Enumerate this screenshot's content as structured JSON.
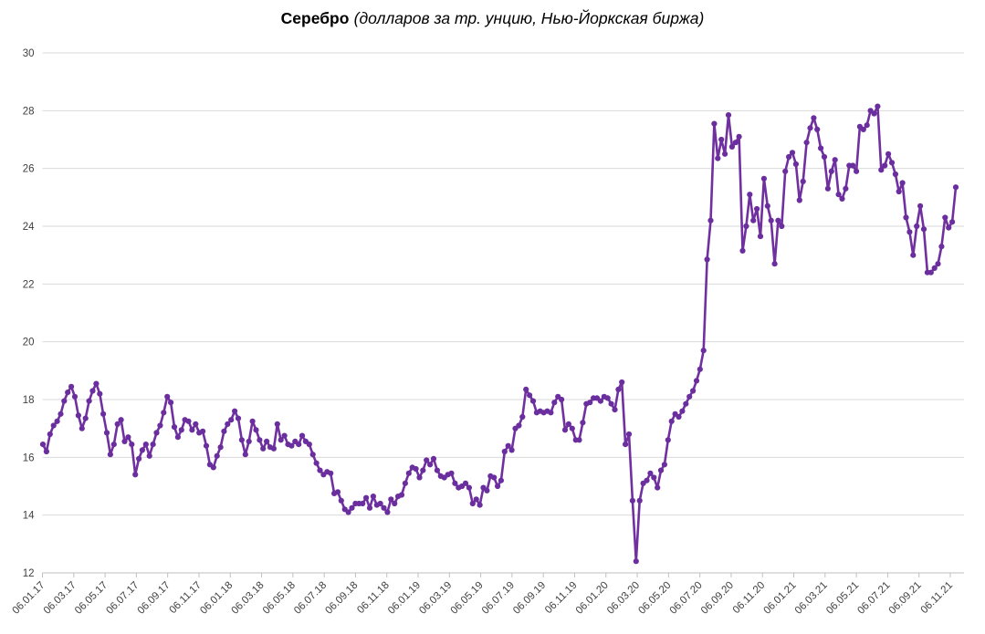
{
  "title": {
    "main": "Серебро",
    "subtitle": "(долларов за тр. унцию, Нью-Йоркская биржа)"
  },
  "colors": {
    "line": "#7030A0",
    "marker": "#6B2E9E",
    "grid": "#D9D9D9",
    "axis": "#BFBFBF",
    "tick_text": "#404040",
    "background": "#FFFFFF"
  },
  "chart_data": {
    "type": "line",
    "title": "Серебро (долларов за тр. унцию, Нью-Йоркская биржа)",
    "series_name": "Серебро, долларов за тройскую унцию",
    "frequency": "weekly",
    "x_start": "06.01.2017",
    "x_end": "12.11.2021",
    "xlabel": "",
    "ylabel": "",
    "ylim": [
      12,
      30
    ],
    "y_ticks": [
      12,
      14,
      16,
      18,
      20,
      22,
      24,
      26,
      28,
      30
    ],
    "grid": "horizontal",
    "legend": "none",
    "marker": "circle",
    "x_tick_labels": [
      "06.01.17",
      "06.03.17",
      "06.05.17",
      "06.07.17",
      "06.09.17",
      "06.11.17",
      "06.01.18",
      "06.03.18",
      "06.05.18",
      "06.07.18",
      "06.09.18",
      "06.11.18",
      "06.01.19",
      "06.03.19",
      "06.05.19",
      "06.07.19",
      "06.09.19",
      "06.11.19",
      "06.01.20",
      "06.03.20",
      "06.05.20",
      "06.07.20",
      "06.09.20",
      "06.11.20",
      "06.01.21",
      "06.03.21",
      "06.05.21",
      "06.07.21",
      "06.09.21",
      "06.11.21"
    ],
    "values": [
      16.45,
      16.2,
      16.8,
      17.1,
      17.25,
      17.5,
      17.95,
      18.25,
      18.45,
      18.1,
      17.45,
      17.0,
      17.35,
      17.95,
      18.3,
      18.55,
      18.2,
      17.5,
      16.85,
      16.1,
      16.45,
      17.15,
      17.3,
      16.55,
      16.7,
      16.45,
      15.4,
      15.95,
      16.25,
      16.45,
      16.05,
      16.45,
      16.85,
      17.1,
      17.55,
      18.1,
      17.9,
      17.05,
      16.7,
      16.95,
      17.3,
      17.25,
      16.95,
      17.15,
      16.85,
      16.9,
      16.4,
      15.75,
      15.65,
      16.05,
      16.35,
      16.9,
      17.15,
      17.3,
      17.6,
      17.35,
      16.6,
      16.1,
      16.55,
      17.25,
      16.95,
      16.6,
      16.3,
      16.55,
      16.35,
      16.3,
      17.15,
      16.6,
      16.75,
      16.45,
      16.4,
      16.55,
      16.45,
      16.75,
      16.55,
      16.45,
      16.1,
      15.8,
      15.55,
      15.4,
      15.5,
      15.45,
      14.75,
      14.8,
      14.5,
      14.2,
      14.1,
      14.25,
      14.4,
      14.4,
      14.4,
      14.6,
      14.25,
      14.65,
      14.35,
      14.4,
      14.25,
      14.1,
      14.55,
      14.4,
      14.65,
      14.7,
      15.1,
      15.45,
      15.65,
      15.6,
      15.3,
      15.55,
      15.9,
      15.75,
      15.95,
      15.55,
      15.35,
      15.3,
      15.4,
      15.45,
      15.1,
      14.95,
      15.0,
      15.1,
      14.95,
      14.4,
      14.55,
      14.35,
      14.95,
      14.85,
      15.35,
      15.3,
      15.0,
      15.2,
      16.2,
      16.4,
      16.25,
      17.0,
      17.1,
      17.4,
      18.35,
      18.15,
      17.95,
      17.55,
      17.6,
      17.55,
      17.6,
      17.55,
      17.9,
      18.1,
      18.0,
      16.95,
      17.15,
      17.0,
      16.6,
      16.6,
      17.2,
      17.85,
      17.9,
      18.05,
      18.05,
      17.95,
      18.1,
      18.05,
      17.85,
      17.65,
      18.35,
      18.6,
      16.45,
      16.8,
      14.5,
      12.4,
      14.5,
      15.1,
      15.2,
      15.45,
      15.3,
      14.95,
      15.55,
      15.75,
      16.6,
      17.25,
      17.5,
      17.4,
      17.6,
      17.85,
      18.1,
      18.3,
      18.65,
      19.05,
      19.7,
      22.85,
      24.2,
      27.55,
      26.35,
      27.0,
      26.5,
      27.85,
      26.75,
      26.9,
      27.1,
      23.15,
      24.0,
      25.1,
      24.2,
      24.6,
      23.65,
      25.65,
      24.7,
      24.2,
      22.7,
      24.2,
      24.0,
      25.9,
      26.4,
      26.55,
      26.15,
      24.9,
      25.55,
      26.9,
      27.4,
      27.75,
      27.35,
      26.7,
      26.4,
      25.3,
      25.9,
      26.3,
      25.1,
      24.95,
      25.3,
      26.1,
      26.1,
      25.9,
      27.45,
      27.35,
      27.5,
      28.0,
      27.9,
      28.15,
      25.95,
      26.1,
      26.5,
      26.2,
      25.8,
      25.2,
      25.5,
      24.3,
      23.8,
      23.0,
      24.0,
      24.7,
      23.9,
      22.4,
      22.4,
      22.55,
      22.7,
      23.3,
      24.3,
      23.95,
      24.15,
      25.35
    ]
  }
}
